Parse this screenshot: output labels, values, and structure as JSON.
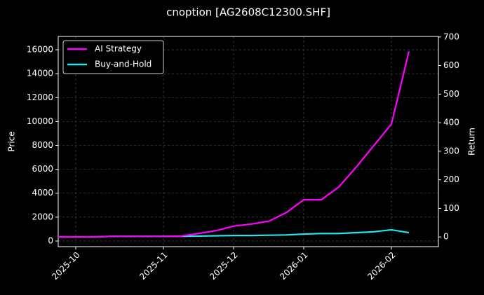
{
  "chart_data": {
    "type": "line",
    "title": "cnoption [AG2608C12300.SHF]",
    "ylabel": "Price",
    "y2label": "Return",
    "categories": [
      null,
      "2025-10",
      null,
      null,
      null,
      null,
      "2025-11",
      null,
      null,
      null,
      "2025-12",
      null,
      null,
      null,
      "2026-01",
      null,
      null,
      null,
      null,
      "2026-02",
      null
    ],
    "series": [
      {
        "name": "AI Strategy",
        "color": "#ff00ff",
        "axis": "y2",
        "values": [
          0,
          0,
          0,
          2,
          2,
          2,
          2,
          3,
          12,
          22,
          38,
          45,
          55,
          85,
          130,
          130,
          175,
          245,
          320,
          395,
          650
        ]
      },
      {
        "name": "Buy-and-Hold",
        "color": "#22e5f0",
        "axis": "y2",
        "values": [
          0,
          0,
          0,
          2,
          2,
          2,
          2,
          2,
          3,
          4,
          5,
          5,
          6,
          7,
          10,
          12,
          12,
          15,
          18,
          25,
          15
        ]
      }
    ],
    "ylim": [
      -470,
      17115
    ],
    "yticks": [
      0,
      2000,
      4000,
      6000,
      8000,
      10000,
      12000,
      14000,
      16000
    ],
    "y2lim": [
      -34,
      702
    ],
    "y2ticks": [
      0,
      100,
      200,
      300,
      400,
      500,
      600,
      700
    ],
    "grid": true,
    "legend": "upper left"
  }
}
